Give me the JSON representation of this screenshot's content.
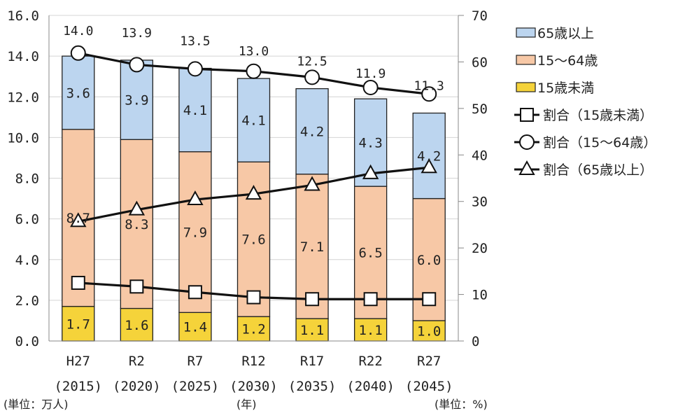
{
  "chart_data": {
    "type": "bar",
    "stacked": true,
    "categories": [
      "H27",
      "R2",
      "R7",
      "R12",
      "R17",
      "R22",
      "R27"
    ],
    "category_years": [
      "(2015)",
      "(2020)",
      "(2025)",
      "(2030)",
      "(2035)",
      "(2040)",
      "(2045)"
    ],
    "left_axis": {
      "min": 0,
      "max": 16,
      "step": 2,
      "ticks": [
        "0.0",
        "2.0",
        "4.0",
        "6.0",
        "8.0",
        "10.0",
        "12.0",
        "14.0",
        "16.0"
      ],
      "unit": "(単位：万人)"
    },
    "right_axis": {
      "min": 0,
      "max": 70,
      "step": 10,
      "ticks": [
        "0",
        "10",
        "20",
        "30",
        "40",
        "50",
        "60",
        "70"
      ],
      "unit": "(単位：%)"
    },
    "x_unit": "(年)",
    "grid": true,
    "legend_position": "right",
    "bar_series": [
      {
        "name": "15歳未満",
        "values": [
          1.7,
          1.6,
          1.4,
          1.2,
          1.1,
          1.1,
          1.0
        ],
        "labels": [
          "1.7",
          "1.6",
          "1.4",
          "1.2",
          "1.1",
          "1.1",
          "1.0"
        ],
        "color": "#f5d33a"
      },
      {
        "name": "15～64歳",
        "values": [
          8.7,
          8.3,
          7.9,
          7.6,
          7.1,
          6.5,
          6.0
        ],
        "labels": [
          "8.7",
          "8.3",
          "7.9",
          "7.6",
          "7.1",
          "6.5",
          "6.0"
        ],
        "color": "#f7c8a6"
      },
      {
        "name": "65歳以上",
        "values": [
          3.6,
          3.9,
          4.1,
          4.1,
          4.2,
          4.3,
          4.2
        ],
        "labels": [
          "3.6",
          "3.9",
          "4.1",
          "4.1",
          "4.2",
          "4.3",
          "4.2"
        ],
        "color": "#bcd5ef"
      }
    ],
    "totals": [
      14.0,
      13.9,
      13.5,
      13.0,
      12.5,
      11.9,
      11.3
    ],
    "total_labels": [
      "14.0",
      "13.9",
      "13.5",
      "13.0",
      "12.5",
      "11.9",
      "11.3"
    ],
    "line_series": [
      {
        "name": "割合（15歳未満）",
        "marker": "square",
        "values": [
          12.5,
          11.7,
          10.5,
          9.4,
          9.0,
          9.0,
          9.0
        ]
      },
      {
        "name": "割合（15～64歳）",
        "marker": "circle",
        "values": [
          61.9,
          59.4,
          58.5,
          58.0,
          56.7,
          54.5,
          53.1
        ]
      },
      {
        "name": "割合（65歳以上）",
        "marker": "triangle",
        "values": [
          25.7,
          28.2,
          30.4,
          31.6,
          33.5,
          36.0,
          37.3
        ]
      }
    ],
    "legend": [
      "65歳以上",
      "15～64歳",
      "15歳未満",
      "割合（15歳未満）",
      "割合（15～64歳）",
      "割合（65歳以上）"
    ]
  }
}
